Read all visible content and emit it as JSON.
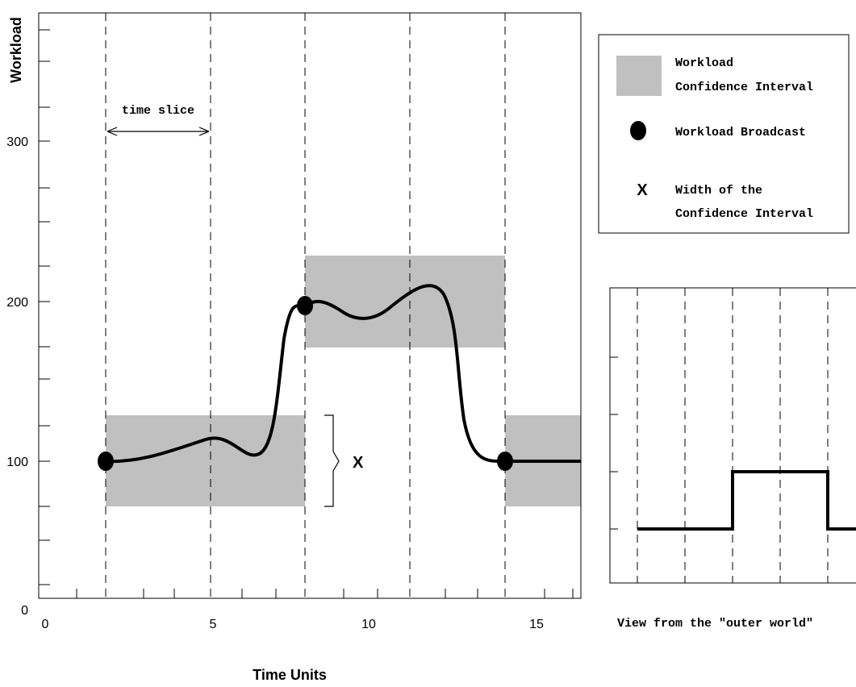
{
  "main": {
    "ylabel": "Workload",
    "xlabel": "Time Units",
    "y_ticks": [
      {
        "value": 0,
        "label": "0"
      },
      {
        "value": 100,
        "label": "100"
      },
      {
        "value": 200,
        "label": "200"
      },
      {
        "value": 300,
        "label": "300"
      }
    ],
    "x_ticks": [
      {
        "value": 0,
        "label": "0"
      },
      {
        "value": 5,
        "label": "5"
      },
      {
        "value": 10,
        "label": "10"
      },
      {
        "value": 15,
        "label": "15"
      }
    ],
    "time_slice_label": "time slice",
    "x_marker_label": "X",
    "confidence_intervals": [
      {
        "x_start": 2,
        "x_end": 8,
        "y_low": 72,
        "y_high": 128
      },
      {
        "x_start": 8,
        "x_end": 14,
        "y_low": 171,
        "y_high": 228
      },
      {
        "x_start": 14,
        "x_end": 17,
        "y_low": 72,
        "y_high": 128
      }
    ],
    "broadcasts": [
      {
        "x": 2,
        "y": 100
      },
      {
        "x": 8,
        "y": 197
      },
      {
        "x": 14,
        "y": 100
      }
    ]
  },
  "legend": {
    "interval_label_line1": "Workload",
    "interval_label_line2": "Confidence Interval",
    "broadcast_label": "Workload Broadcast",
    "width_symbol": "X",
    "width_label_line1": "Width of the",
    "width_label_line2": "Confidence Interval"
  },
  "inset": {
    "caption": "View from the \"outer world\""
  },
  "colors": {
    "interval_fill": "#c0c0c0",
    "line": "#000000"
  }
}
